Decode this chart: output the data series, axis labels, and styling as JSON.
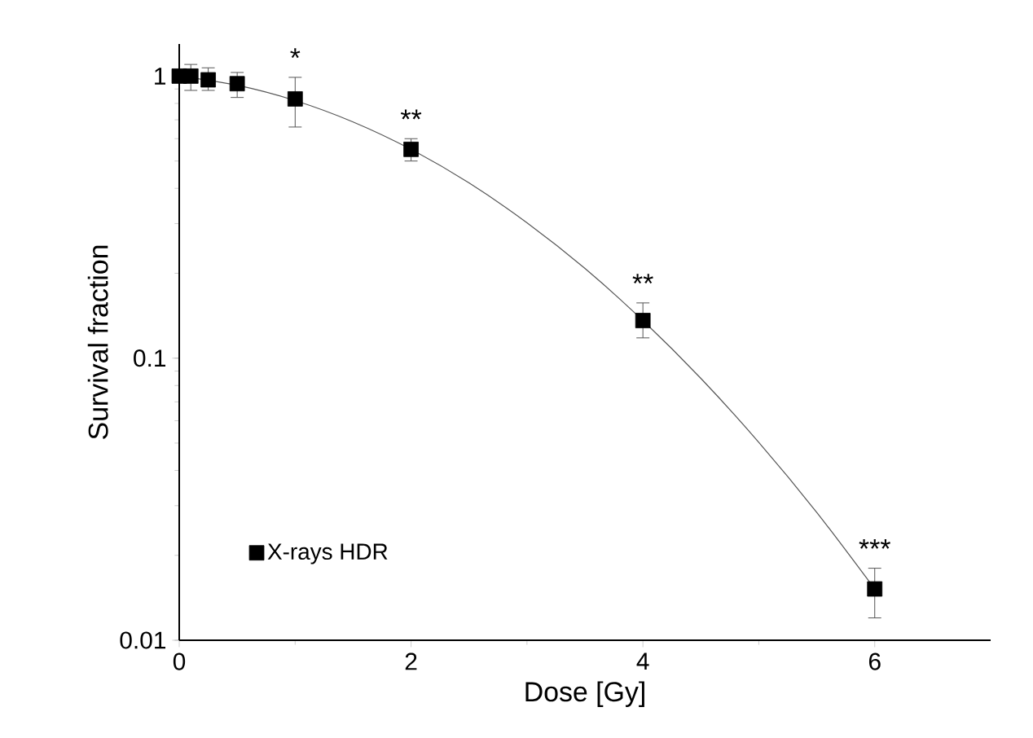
{
  "chart_data": {
    "type": "scatter",
    "xlabel": "Dose [Gy]",
    "ylabel": "Survival fraction",
    "xlim": [
      0,
      7
    ],
    "xticks": [
      0,
      2,
      4,
      6
    ],
    "ylim": [
      0.01,
      1.3
    ],
    "yticks": [
      0.01,
      0.1,
      1
    ],
    "log": "y",
    "legend": "bottom left",
    "marker": "square",
    "series": [
      {
        "name": "X-rays HDR",
        "color": "#000000",
        "x": [
          0,
          0.1,
          0.25,
          0.5,
          1,
          2,
          4,
          6
        ],
        "values": [
          1.0,
          1.0,
          0.97,
          0.94,
          0.83,
          0.55,
          0.136,
          0.0152
        ],
        "errors": [
          [
            0.95,
            1.05
          ],
          [
            0.89,
            1.1
          ],
          [
            0.89,
            1.07
          ],
          [
            0.84,
            1.03
          ],
          [
            0.66,
            0.99
          ],
          [
            0.5,
            0.6
          ],
          [
            0.118,
            0.157
          ],
          [
            0.012,
            0.018
          ]
        ]
      },
      {
        "type": "line",
        "marker": "none",
        "color": "#555555",
        "x": [
          0,
          0.5,
          1,
          1.5,
          2,
          2.5,
          3,
          3.5,
          4,
          4.5,
          5,
          5.5,
          6
        ],
        "values": [
          1.0,
          0.928,
          0.819,
          0.688,
          0.55,
          0.418,
          0.302,
          0.208,
          0.136,
          0.0848,
          0.0503,
          0.0284,
          0.0152
        ]
      }
    ],
    "annotations": [
      {
        "text": "*",
        "x": 1,
        "y": 0.83
      },
      {
        "text": "**",
        "x": 2,
        "y": 0.55
      },
      {
        "text": "**",
        "x": 4,
        "y": 0.136
      },
      {
        "text": "***",
        "x": 6,
        "y": 0.0152
      }
    ]
  }
}
